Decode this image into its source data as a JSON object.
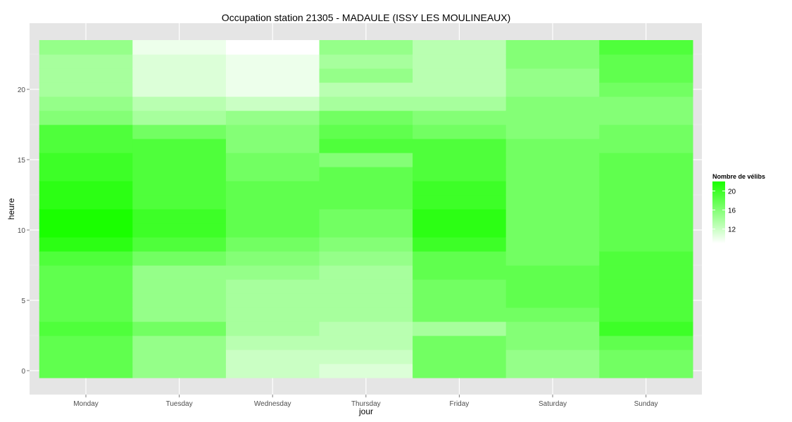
{
  "chart_data": {
    "type": "heatmap",
    "title": "Occupation station 21305 - MADAULE (ISSY LES MOULINEAUX)",
    "xlabel": "jour",
    "ylabel": "heure",
    "x_categories": [
      "Monday",
      "Tuesday",
      "Wednesday",
      "Thursday",
      "Friday",
      "Saturday",
      "Sunday"
    ],
    "y_hours": [
      0,
      1,
      2,
      3,
      4,
      5,
      6,
      7,
      8,
      9,
      10,
      11,
      12,
      13,
      14,
      15,
      16,
      17,
      18,
      19,
      20,
      21,
      22,
      23
    ],
    "y_ticks": [
      0,
      5,
      10,
      15,
      20
    ],
    "ylim": [
      -1,
      24
    ],
    "grid": true,
    "background": "#e5e5e5",
    "legend": {
      "title": "Nombre de vélibs",
      "ticks": [
        12,
        16,
        20
      ],
      "range": [
        9,
        22
      ],
      "color_low": "#ffffff",
      "color_high": "#1aff00",
      "placement": "right"
    },
    "values": {
      "Monday": [
        18,
        18,
        18,
        19,
        18,
        18,
        18,
        18,
        19,
        21,
        22,
        22,
        21,
        21,
        20,
        20,
        19,
        19,
        16,
        15,
        14,
        14,
        14,
        15
      ],
      "Tuesday": [
        15,
        15,
        15,
        17,
        15,
        15,
        15,
        15,
        17,
        19,
        20,
        20,
        19,
        19,
        19,
        19,
        19,
        17,
        14,
        13,
        11,
        11,
        11,
        10
      ],
      "Wednesday": [
        12,
        12,
        13,
        14,
        14,
        14,
        14,
        15,
        16,
        17,
        18,
        18,
        18,
        18,
        17,
        17,
        16,
        16,
        15,
        12,
        10,
        10,
        10,
        9
      ],
      "Thursday": [
        11,
        12,
        13,
        13,
        14,
        14,
        14,
        14,
        15,
        16,
        17,
        17,
        18,
        18,
        18,
        16,
        19,
        18,
        17,
        14,
        13,
        15,
        14,
        15
      ],
      "Friday": [
        17,
        17,
        17,
        14,
        17,
        17,
        17,
        18,
        18,
        20,
        21,
        21,
        20,
        20,
        19,
        19,
        19,
        17,
        16,
        14,
        13,
        13,
        13,
        13
      ],
      "Saturday": [
        15,
        15,
        16,
        16,
        17,
        18,
        18,
        18,
        17,
        17,
        17,
        17,
        17,
        17,
        17,
        17,
        17,
        16,
        16,
        16,
        15,
        15,
        16,
        16
      ],
      "Sunday": [
        17,
        17,
        18,
        20,
        19,
        19,
        19,
        19,
        19,
        18,
        18,
        18,
        18,
        18,
        18,
        18,
        17,
        17,
        16,
        16,
        17,
        18,
        18,
        19
      ]
    }
  }
}
